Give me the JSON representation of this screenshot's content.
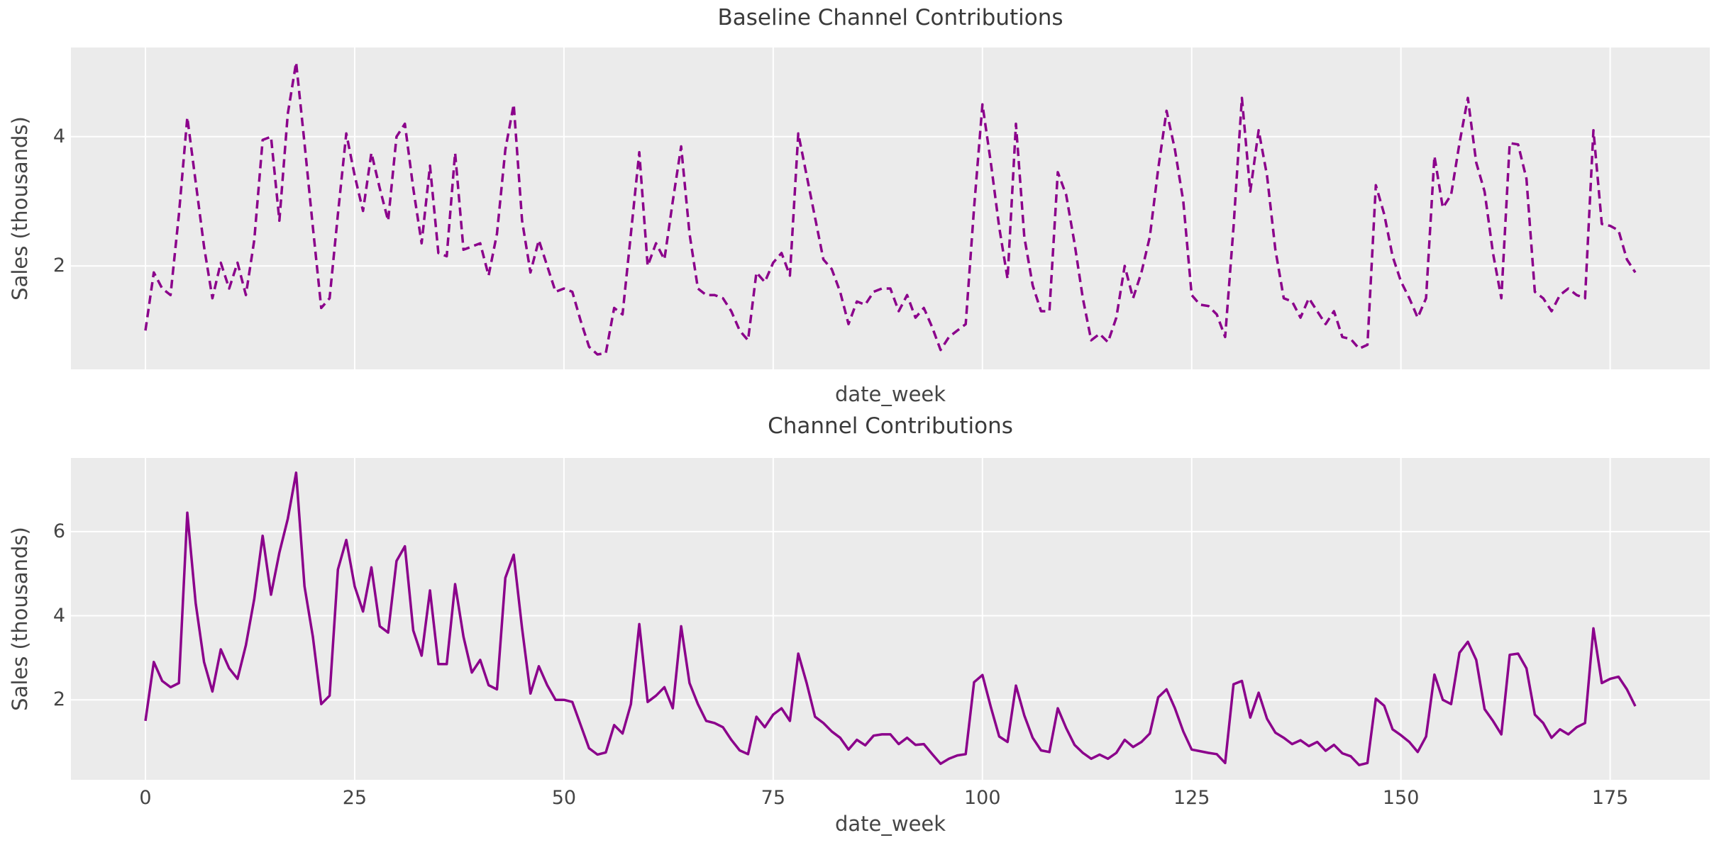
{
  "figure": {
    "plot_background": "#ebebeb",
    "grid_color": "#ffffff",
    "text_color": "#454545",
    "line_color": "#8B008B"
  },
  "chart_data": [
    {
      "type": "line",
      "title": "Baseline Channel Contributions",
      "xlabel": "date_week",
      "ylabel": "Sales (thousands)",
      "line_color": "#8B008B",
      "line_style": "dashed",
      "line_width": 3.5,
      "grid": true,
      "legend_position": "none",
      "xlim": [
        -8.9,
        186.9
      ],
      "ylim": [
        0.4,
        5.38
      ],
      "x_ticks": [
        0,
        25,
        50,
        75,
        100,
        125,
        150,
        175
      ],
      "x_tick_labels": [],
      "show_x_tick_labels": false,
      "y_ticks": [
        2,
        4
      ],
      "y_tick_labels": [
        "2",
        "4"
      ],
      "x": [
        0,
        1,
        2,
        3,
        4,
        5,
        6,
        7,
        8,
        9,
        10,
        11,
        12,
        13,
        14,
        15,
        16,
        17,
        18,
        19,
        20,
        21,
        22,
        23,
        24,
        25,
        26,
        27,
        28,
        29,
        30,
        31,
        32,
        33,
        34,
        35,
        36,
        37,
        38,
        39,
        40,
        41,
        42,
        43,
        44,
        45,
        46,
        47,
        48,
        49,
        50,
        51,
        52,
        53,
        54,
        55,
        56,
        57,
        58,
        59,
        60,
        61,
        62,
        63,
        64,
        65,
        66,
        67,
        68,
        69,
        70,
        71,
        72,
        73,
        74,
        75,
        76,
        77,
        78,
        79,
        80,
        81,
        82,
        83,
        84,
        85,
        86,
        87,
        88,
        89,
        90,
        91,
        92,
        93,
        94,
        95,
        96,
        97,
        98,
        99,
        100,
        101,
        102,
        103,
        104,
        105,
        106,
        107,
        108,
        109,
        110,
        111,
        112,
        113,
        114,
        115,
        116,
        117,
        118,
        119,
        120,
        121,
        122,
        123,
        124,
        125,
        126,
        127,
        128,
        129,
        130,
        131,
        132,
        133,
        134,
        135,
        136,
        137,
        138,
        139,
        140,
        141,
        142,
        143,
        144,
        145,
        146,
        147,
        148,
        149,
        150,
        151,
        152,
        153,
        154,
        155,
        156,
        157,
        158,
        159,
        160,
        161,
        162,
        163,
        164,
        165,
        166,
        167,
        168,
        169,
        170,
        171,
        172,
        173,
        174,
        175,
        176,
        177,
        178
      ],
      "values": [
        1.0,
        1.9,
        1.65,
        1.55,
        2.8,
        4.3,
        3.3,
        2.3,
        1.5,
        2.05,
        1.65,
        2.05,
        1.55,
        2.4,
        3.95,
        4.0,
        2.7,
        4.35,
        5.15,
        3.9,
        2.6,
        1.35,
        1.5,
        2.8,
        4.05,
        3.4,
        2.85,
        3.75,
        3.2,
        2.7,
        4.0,
        4.2,
        3.2,
        2.35,
        3.55,
        2.2,
        2.15,
        3.75,
        2.25,
        2.3,
        2.35,
        1.85,
        2.5,
        3.8,
        4.5,
        2.7,
        1.9,
        2.4,
        2.0,
        1.6,
        1.65,
        1.6,
        1.15,
        0.75,
        0.63,
        0.65,
        1.35,
        1.25,
        2.5,
        3.76,
        2.0,
        2.35,
        2.1,
        3.0,
        3.85,
        2.5,
        1.65,
        1.55,
        1.55,
        1.5,
        1.3,
        1.0,
        0.85,
        1.9,
        1.75,
        2.05,
        2.2,
        1.85,
        4.05,
        3.4,
        2.75,
        2.1,
        1.95,
        1.6,
        1.1,
        1.45,
        1.4,
        1.6,
        1.65,
        1.65,
        1.3,
        1.55,
        1.2,
        1.35,
        1.05,
        0.7,
        0.9,
        1.0,
        1.1,
        2.9,
        4.5,
        3.6,
        2.6,
        1.8,
        4.2,
        2.45,
        1.7,
        1.3,
        1.3,
        3.45,
        3.1,
        2.35,
        1.5,
        0.85,
        0.95,
        0.82,
        1.2,
        2.0,
        1.5,
        1.9,
        2.45,
        3.5,
        4.4,
        3.8,
        3.0,
        1.55,
        1.4,
        1.38,
        1.25,
        0.9,
        2.6,
        4.6,
        3.15,
        4.1,
        3.4,
        2.25,
        1.5,
        1.45,
        1.2,
        1.5,
        1.3,
        1.1,
        1.3,
        0.9,
        0.87,
        0.72,
        0.78,
        3.25,
        2.8,
        2.15,
        1.76,
        1.5,
        1.2,
        1.5,
        3.7,
        2.9,
        3.1,
        3.9,
        4.6,
        3.6,
        3.15,
        2.2,
        1.5,
        3.9,
        3.88,
        3.35,
        1.6,
        1.5,
        1.3,
        1.55,
        1.65,
        1.55,
        1.5,
        4.1,
        2.65,
        2.62,
        2.55,
        2.1,
        1.9
      ]
    },
    {
      "type": "line",
      "title": "Channel Contributions",
      "xlabel": "date_week",
      "ylabel": "Sales (thousands)",
      "line_color": "#8B008B",
      "line_style": "solid",
      "line_width": 3.5,
      "grid": true,
      "legend_position": "none",
      "xlim": [
        -8.9,
        186.9
      ],
      "ylim": [
        0.1,
        7.75
      ],
      "x_ticks": [
        0,
        25,
        50,
        75,
        100,
        125,
        150,
        175
      ],
      "x_tick_labels": [
        "0",
        "25",
        "50",
        "75",
        "100",
        "125",
        "150",
        "175"
      ],
      "show_x_tick_labels": true,
      "y_ticks": [
        2,
        4,
        6
      ],
      "y_tick_labels": [
        "2",
        "4",
        "6"
      ],
      "x": [
        0,
        1,
        2,
        3,
        4,
        5,
        6,
        7,
        8,
        9,
        10,
        11,
        12,
        13,
        14,
        15,
        16,
        17,
        18,
        19,
        20,
        21,
        22,
        23,
        24,
        25,
        26,
        27,
        28,
        29,
        30,
        31,
        32,
        33,
        34,
        35,
        36,
        37,
        38,
        39,
        40,
        41,
        42,
        43,
        44,
        45,
        46,
        47,
        48,
        49,
        50,
        51,
        52,
        53,
        54,
        55,
        56,
        57,
        58,
        59,
        60,
        61,
        62,
        63,
        64,
        65,
        66,
        67,
        68,
        69,
        70,
        71,
        72,
        73,
        74,
        75,
        76,
        77,
        78,
        79,
        80,
        81,
        82,
        83,
        84,
        85,
        86,
        87,
        88,
        89,
        90,
        91,
        92,
        93,
        94,
        95,
        96,
        97,
        98,
        99,
        100,
        101,
        102,
        103,
        104,
        105,
        106,
        107,
        108,
        109,
        110,
        111,
        112,
        113,
        114,
        115,
        116,
        117,
        118,
        119,
        120,
        121,
        122,
        123,
        124,
        125,
        126,
        127,
        128,
        129,
        130,
        131,
        132,
        133,
        134,
        135,
        136,
        137,
        138,
        139,
        140,
        141,
        142,
        143,
        144,
        145,
        146,
        147,
        148,
        149,
        150,
        151,
        152,
        153,
        154,
        155,
        156,
        157,
        158,
        159,
        160,
        161,
        162,
        163,
        164,
        165,
        166,
        167,
        168,
        169,
        170,
        171,
        172,
        173,
        174,
        175,
        176,
        177,
        178
      ],
      "values": [
        1.5,
        2.9,
        2.45,
        2.3,
        2.4,
        6.45,
        4.3,
        2.9,
        2.2,
        3.2,
        2.75,
        2.5,
        3.3,
        4.4,
        5.9,
        4.5,
        5.5,
        6.3,
        7.4,
        4.7,
        3.5,
        1.9,
        2.1,
        5.1,
        5.8,
        4.7,
        4.1,
        5.15,
        3.75,
        3.6,
        5.3,
        5.65,
        3.65,
        3.05,
        4.6,
        2.85,
        2.85,
        4.75,
        3.5,
        2.65,
        2.95,
        2.35,
        2.25,
        4.9,
        5.45,
        3.7,
        2.15,
        2.8,
        2.35,
        2.0,
        2.0,
        1.95,
        1.4,
        0.85,
        0.7,
        0.75,
        1.4,
        1.2,
        1.9,
        3.8,
        1.95,
        2.1,
        2.3,
        1.8,
        3.75,
        2.4,
        1.9,
        1.5,
        1.45,
        1.35,
        1.05,
        0.8,
        0.71,
        1.6,
        1.35,
        1.65,
        1.8,
        1.5,
        3.1,
        2.4,
        1.6,
        1.45,
        1.25,
        1.1,
        0.82,
        1.05,
        0.92,
        1.15,
        1.18,
        1.18,
        0.95,
        1.1,
        0.93,
        0.95,
        0.71,
        0.48,
        0.6,
        0.68,
        0.71,
        2.42,
        2.59,
        1.83,
        1.13,
        1.0,
        2.34,
        1.63,
        1.1,
        0.8,
        0.76,
        1.8,
        1.33,
        0.93,
        0.74,
        0.6,
        0.7,
        0.6,
        0.74,
        1.05,
        0.88,
        1.0,
        1.2,
        2.06,
        2.25,
        1.8,
        1.25,
        0.82,
        0.78,
        0.74,
        0.71,
        0.5,
        2.37,
        2.45,
        1.58,
        2.17,
        1.55,
        1.22,
        1.1,
        0.95,
        1.04,
        0.9,
        1.0,
        0.79,
        0.93,
        0.73,
        0.66,
        0.45,
        0.5,
        2.03,
        1.86,
        1.3,
        1.16,
        1.0,
        0.76,
        1.13,
        2.6,
        2.0,
        1.9,
        3.12,
        3.38,
        2.95,
        1.78,
        1.5,
        1.18,
        3.07,
        3.1,
        2.75,
        1.65,
        1.45,
        1.1,
        1.3,
        1.18,
        1.35,
        1.45,
        3.7,
        2.4,
        2.5,
        2.55,
        2.25,
        1.85
      ]
    }
  ]
}
